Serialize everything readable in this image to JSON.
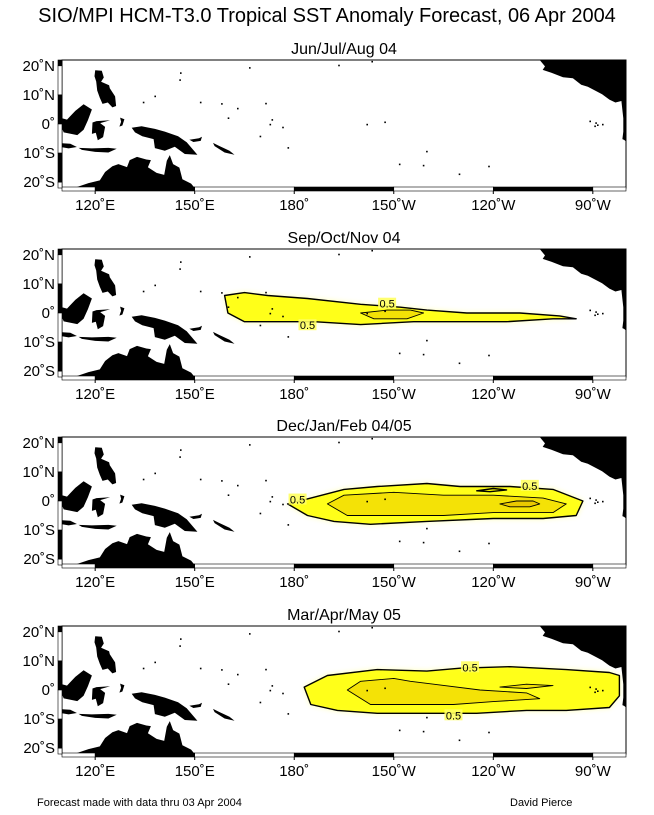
{
  "chart_data": {
    "type": "contour-map",
    "title": "SIO/MPI HCM-T3.0 Tropical SST Anomaly Forecast, 06 Apr 2004",
    "footer_left": "Forecast made with data thru 03 Apr 2004",
    "footer_right": "David Pierce",
    "lon_range": [
      110,
      280
    ],
    "lat_range": [
      -22,
      22
    ],
    "x_ticks": [
      {
        "lon": 120,
        "label": "120˚E"
      },
      {
        "lon": 150,
        "label": "150˚E"
      },
      {
        "lon": 180,
        "label": "180˚"
      },
      {
        "lon": 210,
        "label": "150˚W"
      },
      {
        "lon": 240,
        "label": "120˚W"
      },
      {
        "lon": 270,
        "label": "90˚W"
      }
    ],
    "y_ticks": [
      {
        "lat": 20,
        "label": "20˚N"
      },
      {
        "lat": 10,
        "label": "10˚N"
      },
      {
        "lat": 0,
        "label": "0˚"
      },
      {
        "lat": -10,
        "label": "10˚S"
      },
      {
        "lat": -20,
        "label": "20˚S"
      }
    ],
    "fill_color": "#ffff00",
    "land_color": "#000000",
    "panels": [
      {
        "title": "Jun/Jul/Aug 04",
        "contours": [],
        "labels": []
      },
      {
        "title": "Sep/Oct/Nov 04",
        "contours": [
          {
            "level": 0.5,
            "points": [
              [
                159,
                6
              ],
              [
                165,
                7
              ],
              [
                172,
                6
              ],
              [
                184,
                5
              ],
              [
                200,
                3
              ],
              [
                212,
                2
              ],
              [
                220,
                1
              ],
              [
                232,
                0
              ],
              [
                248,
                0
              ],
              [
                260,
                -1
              ],
              [
                265,
                -2
              ],
              [
                258,
                -2
              ],
              [
                244,
                -3
              ],
              [
                230,
                -3
              ],
              [
                216,
                -3
              ],
              [
                200,
                -4
              ],
              [
                186,
                -3
              ],
              [
                175,
                -3
              ],
              [
                165,
                -3
              ],
              [
                160,
                0
              ]
            ]
          },
          {
            "level": 0.7,
            "points": [
              [
                200,
                0
              ],
              [
                208,
                1
              ],
              [
                215,
                1
              ],
              [
                219,
                0
              ],
              [
                214,
                -2
              ],
              [
                204,
                -2
              ]
            ]
          }
        ],
        "labels": [
          {
            "text": "0.5",
            "lon": 208,
            "lat": 3.2
          },
          {
            "text": "0.5",
            "lon": 184,
            "lat": -4.2
          }
        ]
      },
      {
        "title": "Dec/Jan/Feb 04/05",
        "contours": [
          {
            "level": 0.5,
            "points": [
              [
                178,
                -1
              ],
              [
                185,
                1
              ],
              [
                195,
                4
              ],
              [
                205,
                5
              ],
              [
                220,
                6
              ],
              [
                230,
                5
              ],
              [
                245,
                5
              ],
              [
                258,
                4
              ],
              [
                267,
                0
              ],
              [
                265,
                -5
              ],
              [
                255,
                -6
              ],
              [
                240,
                -6
              ],
              [
                220,
                -7
              ],
              [
                203,
                -8
              ],
              [
                192,
                -7
              ],
              [
                184,
                -5
              ]
            ]
          },
          {
            "level": 0.7,
            "points": [
              [
                190,
                -1
              ],
              [
                195,
                2
              ],
              [
                210,
                3
              ],
              [
                225,
                2
              ],
              [
                240,
                2
              ],
              [
                255,
                1
              ],
              [
                262,
                -1
              ],
              [
                258,
                -4
              ],
              [
                240,
                -4
              ],
              [
                225,
                -5
              ],
              [
                210,
                -5
              ],
              [
                196,
                -5
              ]
            ]
          },
          {
            "level": 1.0,
            "points": [
              [
                242,
                -1
              ],
              [
                247,
                0
              ],
              [
                252,
                0
              ],
              [
                254,
                -1
              ],
              [
                251,
                -2
              ],
              [
                245,
                -2
              ]
            ]
          },
          {
            "level": 0.5,
            "points": [
              [
                235,
                3.5
              ],
              [
                240,
                4.3
              ],
              [
                244,
                3.8
              ],
              [
                239,
                3.2
              ]
            ]
          }
        ],
        "labels": [
          {
            "text": "0.5",
            "lon": 181,
            "lat": 0.5
          },
          {
            "text": "0.5",
            "lon": 251,
            "lat": 5.2
          }
        ]
      },
      {
        "title": "Mar/Apr/May 05",
        "contours": [
          {
            "level": 0.5,
            "points": [
              [
                183,
                1
              ],
              [
                190,
                5
              ],
              [
                205,
                7
              ],
              [
                220,
                6.5
              ],
              [
                230,
                7.5
              ],
              [
                245,
                8
              ],
              [
                262,
                7
              ],
              [
                275,
                6
              ],
              [
                278,
                5
              ],
              [
                278,
                -2
              ],
              [
                275,
                -6
              ],
              [
                262,
                -7
              ],
              [
                250,
                -7
              ],
              [
                235,
                -8
              ],
              [
                220,
                -8
              ],
              [
                205,
                -8
              ],
              [
                193,
                -7
              ],
              [
                185,
                -5
              ]
            ]
          },
          {
            "level": 0.7,
            "points": [
              [
                196,
                0
              ],
              [
                200,
                3
              ],
              [
                210,
                4
              ],
              [
                215,
                3
              ],
              [
                222,
                2
              ],
              [
                236,
                0
              ],
              [
                250,
                -1
              ],
              [
                254,
                -3
              ],
              [
                240,
                -4
              ],
              [
                228,
                -5
              ],
              [
                215,
                -5
              ],
              [
                203,
                -5
              ]
            ]
          },
          {
            "level": 0.7,
            "points": [
              [
                242,
                1
              ],
              [
                250,
                2
              ],
              [
                258,
                1.5
              ],
              [
                250,
                0.5
              ]
            ]
          }
        ],
        "labels": [
          {
            "text": "0.5",
            "lon": 233,
            "lat": 7.8
          },
          {
            "text": "0.5",
            "lon": 228,
            "lat": -8.7
          }
        ]
      }
    ]
  }
}
